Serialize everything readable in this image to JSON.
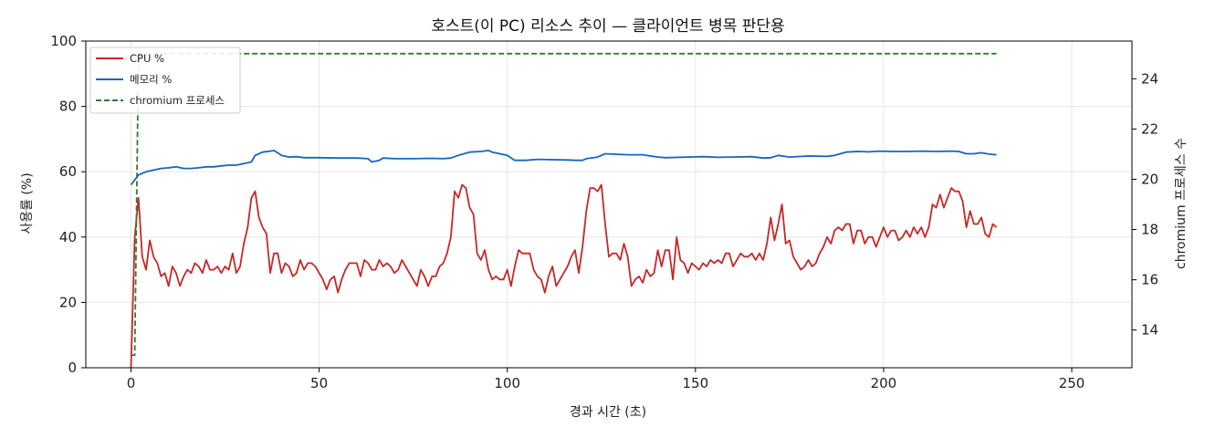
{
  "chart_data": {
    "type": "line",
    "title": "호스트(이 PC) 리소스 추이 — 클라이언트 병목 판단용",
    "xlabel": "경과 시간 (초)",
    "ylabel": "사용률 (%)",
    "y2label": "chromium 프로세스 수",
    "xlim": [
      -12,
      266
    ],
    "ylim": [
      0,
      100
    ],
    "y2lim": [
      12.5,
      25.5
    ],
    "xticks": [
      0,
      50,
      100,
      150,
      200,
      250
    ],
    "yticks": [
      0,
      20,
      40,
      60,
      80,
      100
    ],
    "y2ticks": [
      14,
      16,
      18,
      20,
      22,
      24
    ],
    "grid": true,
    "legend_position": "top-left",
    "series": [
      {
        "name": "CPU %",
        "axis": "left",
        "color": "#c62828",
        "style": "solid",
        "points": [
          [
            0,
            0
          ],
          [
            1,
            40
          ],
          [
            2,
            52
          ],
          [
            3,
            34
          ],
          [
            4,
            30
          ],
          [
            5,
            39
          ],
          [
            6,
            34
          ],
          [
            7,
            32
          ],
          [
            8,
            28
          ],
          [
            9,
            29
          ],
          [
            10,
            25
          ],
          [
            11,
            31
          ],
          [
            12,
            29
          ],
          [
            13,
            25
          ],
          [
            14,
            28
          ],
          [
            15,
            30
          ],
          [
            16,
            29
          ],
          [
            17,
            32
          ],
          [
            18,
            31
          ],
          [
            19,
            29
          ],
          [
            20,
            33
          ],
          [
            21,
            30
          ],
          [
            22,
            30
          ],
          [
            23,
            31
          ],
          [
            24,
            29
          ],
          [
            25,
            31
          ],
          [
            26,
            30
          ],
          [
            27,
            35
          ],
          [
            28,
            29
          ],
          [
            29,
            31
          ],
          [
            30,
            38
          ],
          [
            31,
            43
          ],
          [
            32,
            52
          ],
          [
            33,
            54
          ],
          [
            34,
            46
          ],
          [
            35,
            43
          ],
          [
            36,
            41
          ],
          [
            37,
            29
          ],
          [
            38,
            35
          ],
          [
            39,
            35
          ],
          [
            40,
            29
          ],
          [
            41,
            32
          ],
          [
            42,
            31
          ],
          [
            43,
            28
          ],
          [
            44,
            29
          ],
          [
            45,
            33
          ],
          [
            46,
            30
          ],
          [
            47,
            32
          ],
          [
            48,
            32
          ],
          [
            49,
            31
          ],
          [
            50,
            29
          ],
          [
            51,
            27
          ],
          [
            52,
            24
          ],
          [
            53,
            27
          ],
          [
            54,
            28
          ],
          [
            55,
            23
          ],
          [
            56,
            27
          ],
          [
            57,
            30
          ],
          [
            58,
            32
          ],
          [
            59,
            32
          ],
          [
            60,
            32
          ],
          [
            61,
            28
          ],
          [
            62,
            33
          ],
          [
            63,
            32
          ],
          [
            64,
            30
          ],
          [
            65,
            30
          ],
          [
            66,
            33
          ],
          [
            67,
            31
          ],
          [
            68,
            32
          ],
          [
            69,
            31
          ],
          [
            70,
            29
          ],
          [
            71,
            30
          ],
          [
            72,
            33
          ],
          [
            73,
            31
          ],
          [
            74,
            29
          ],
          [
            75,
            27
          ],
          [
            76,
            25
          ],
          [
            77,
            30
          ],
          [
            78,
            28
          ],
          [
            79,
            25
          ],
          [
            80,
            28
          ],
          [
            81,
            28
          ],
          [
            82,
            31
          ],
          [
            83,
            32
          ],
          [
            84,
            35
          ],
          [
            85,
            40
          ],
          [
            86,
            54
          ],
          [
            87,
            52
          ],
          [
            88,
            56
          ],
          [
            89,
            55
          ],
          [
            90,
            49
          ],
          [
            91,
            47
          ],
          [
            92,
            35
          ],
          [
            93,
            33
          ],
          [
            94,
            36
          ],
          [
            95,
            30
          ],
          [
            96,
            27
          ],
          [
            97,
            28
          ],
          [
            98,
            27
          ],
          [
            99,
            27
          ],
          [
            100,
            30
          ],
          [
            101,
            25
          ],
          [
            102,
            31
          ],
          [
            103,
            36
          ],
          [
            104,
            35
          ],
          [
            105,
            35
          ],
          [
            106,
            35
          ],
          [
            107,
            30
          ],
          [
            108,
            28
          ],
          [
            109,
            27
          ],
          [
            110,
            23
          ],
          [
            111,
            28
          ],
          [
            112,
            31
          ],
          [
            113,
            25
          ],
          [
            114,
            27
          ],
          [
            115,
            29
          ],
          [
            116,
            31
          ],
          [
            117,
            34
          ],
          [
            118,
            36
          ],
          [
            119,
            29
          ],
          [
            120,
            37
          ],
          [
            121,
            48
          ],
          [
            122,
            55
          ],
          [
            123,
            55
          ],
          [
            124,
            54
          ],
          [
            125,
            56
          ],
          [
            126,
            44
          ],
          [
            127,
            34
          ],
          [
            128,
            35
          ],
          [
            129,
            35
          ],
          [
            130,
            33
          ],
          [
            131,
            38
          ],
          [
            132,
            34
          ],
          [
            133,
            25
          ],
          [
            134,
            27
          ],
          [
            135,
            28
          ],
          [
            136,
            26
          ],
          [
            137,
            30
          ],
          [
            138,
            28
          ],
          [
            139,
            29
          ],
          [
            140,
            36
          ],
          [
            141,
            31
          ],
          [
            142,
            36
          ],
          [
            143,
            36
          ],
          [
            144,
            27
          ],
          [
            145,
            40
          ],
          [
            146,
            33
          ],
          [
            147,
            32
          ],
          [
            148,
            29
          ],
          [
            149,
            32
          ],
          [
            150,
            31
          ],
          [
            151,
            30
          ],
          [
            152,
            32
          ],
          [
            153,
            31
          ],
          [
            154,
            33
          ],
          [
            155,
            32
          ],
          [
            156,
            33
          ],
          [
            157,
            32
          ],
          [
            158,
            35
          ],
          [
            159,
            35
          ],
          [
            160,
            31
          ],
          [
            161,
            33
          ],
          [
            162,
            35
          ],
          [
            163,
            34
          ],
          [
            164,
            34
          ],
          [
            165,
            35
          ],
          [
            166,
            33
          ],
          [
            167,
            35
          ],
          [
            168,
            33
          ],
          [
            169,
            38
          ],
          [
            170,
            46
          ],
          [
            171,
            39
          ],
          [
            172,
            44
          ],
          [
            173,
            50
          ],
          [
            174,
            38
          ],
          [
            175,
            39
          ],
          [
            176,
            34
          ],
          [
            177,
            32
          ],
          [
            178,
            30
          ],
          [
            179,
            31
          ],
          [
            180,
            33
          ],
          [
            181,
            31
          ],
          [
            182,
            32
          ],
          [
            183,
            35
          ],
          [
            184,
            37
          ],
          [
            185,
            40
          ],
          [
            186,
            38
          ],
          [
            187,
            42
          ],
          [
            188,
            43
          ],
          [
            189,
            42
          ],
          [
            190,
            44
          ],
          [
            191,
            44
          ],
          [
            192,
            38
          ],
          [
            193,
            42
          ],
          [
            194,
            42
          ],
          [
            195,
            38
          ],
          [
            196,
            40
          ],
          [
            197,
            40
          ],
          [
            198,
            37
          ],
          [
            199,
            40
          ],
          [
            200,
            43
          ],
          [
            201,
            40
          ],
          [
            202,
            42
          ],
          [
            203,
            42
          ],
          [
            204,
            39
          ],
          [
            205,
            40
          ],
          [
            206,
            42
          ],
          [
            207,
            40
          ],
          [
            208,
            43
          ],
          [
            209,
            41
          ],
          [
            210,
            43
          ],
          [
            211,
            40
          ],
          [
            212,
            43
          ],
          [
            213,
            50
          ],
          [
            214,
            49
          ],
          [
            215,
            53
          ],
          [
            216,
            49
          ],
          [
            217,
            52
          ],
          [
            218,
            55
          ],
          [
            219,
            54
          ],
          [
            220,
            54
          ],
          [
            221,
            51
          ],
          [
            222,
            43
          ],
          [
            223,
            48
          ],
          [
            224,
            44
          ],
          [
            225,
            44
          ],
          [
            226,
            46
          ],
          [
            227,
            41
          ],
          [
            228,
            40
          ],
          [
            229,
            44
          ],
          [
            230,
            43
          ]
        ]
      },
      {
        "name": "메모리 %",
        "axis": "left",
        "color": "#1565c0",
        "style": "solid",
        "points": [
          [
            0,
            56
          ],
          [
            2,
            59
          ],
          [
            4,
            60
          ],
          [
            6,
            60.5
          ],
          [
            8,
            61
          ],
          [
            10,
            61.2
          ],
          [
            12,
            61.5
          ],
          [
            14,
            61
          ],
          [
            16,
            61
          ],
          [
            18,
            61.2
          ],
          [
            20,
            61.5
          ],
          [
            22,
            61.5
          ],
          [
            24,
            61.8
          ],
          [
            26,
            62
          ],
          [
            28,
            62
          ],
          [
            30,
            62.5
          ],
          [
            32,
            63
          ],
          [
            33,
            65
          ],
          [
            35,
            66
          ],
          [
            37,
            66.3
          ],
          [
            38,
            66.5
          ],
          [
            40,
            65
          ],
          [
            42,
            64.5
          ],
          [
            44,
            64.6
          ],
          [
            46,
            64.3
          ],
          [
            50,
            64.3
          ],
          [
            55,
            64.2
          ],
          [
            60,
            64.2
          ],
          [
            63,
            64
          ],
          [
            64,
            63
          ],
          [
            66,
            63.5
          ],
          [
            67,
            64.2
          ],
          [
            70,
            64
          ],
          [
            75,
            64
          ],
          [
            80,
            64.1
          ],
          [
            83,
            64
          ],
          [
            85,
            64.2
          ],
          [
            87,
            65
          ],
          [
            90,
            66
          ],
          [
            93,
            66.2
          ],
          [
            95,
            66.5
          ],
          [
            96,
            66
          ],
          [
            98,
            65.5
          ],
          [
            100,
            65
          ],
          [
            102,
            63.5
          ],
          [
            105,
            63.5
          ],
          [
            108,
            63.8
          ],
          [
            112,
            63.7
          ],
          [
            116,
            63.6
          ],
          [
            118,
            63.5
          ],
          [
            120,
            63.5
          ],
          [
            121,
            64
          ],
          [
            124,
            64.5
          ],
          [
            126,
            65.5
          ],
          [
            128,
            65.4
          ],
          [
            132,
            65.2
          ],
          [
            136,
            65.2
          ],
          [
            140,
            64.5
          ],
          [
            142,
            64.3
          ],
          [
            148,
            64.5
          ],
          [
            152,
            64.6
          ],
          [
            156,
            64.4
          ],
          [
            160,
            64.5
          ],
          [
            165,
            64.6
          ],
          [
            168,
            64.2
          ],
          [
            170,
            64.3
          ],
          [
            172,
            65
          ],
          [
            175,
            64.5
          ],
          [
            180,
            64.8
          ],
          [
            185,
            64.7
          ],
          [
            187,
            65
          ],
          [
            190,
            66
          ],
          [
            193,
            66.2
          ],
          [
            196,
            66.1
          ],
          [
            199,
            66.3
          ],
          [
            202,
            66.2
          ],
          [
            206,
            66.2
          ],
          [
            210,
            66.3
          ],
          [
            214,
            66.2
          ],
          [
            218,
            66.3
          ],
          [
            220,
            66.2
          ],
          [
            222,
            65.5
          ],
          [
            224,
            65.5
          ],
          [
            226,
            65.8
          ],
          [
            228,
            65.4
          ],
          [
            230,
            65.2
          ]
        ]
      },
      {
        "name": "chromium 프로세스",
        "axis": "right",
        "color": "#2e7d32",
        "style": "dashed",
        "points": [
          [
            0,
            13
          ],
          [
            1,
            13
          ],
          [
            2,
            25
          ],
          [
            230,
            25
          ]
        ]
      }
    ]
  }
}
